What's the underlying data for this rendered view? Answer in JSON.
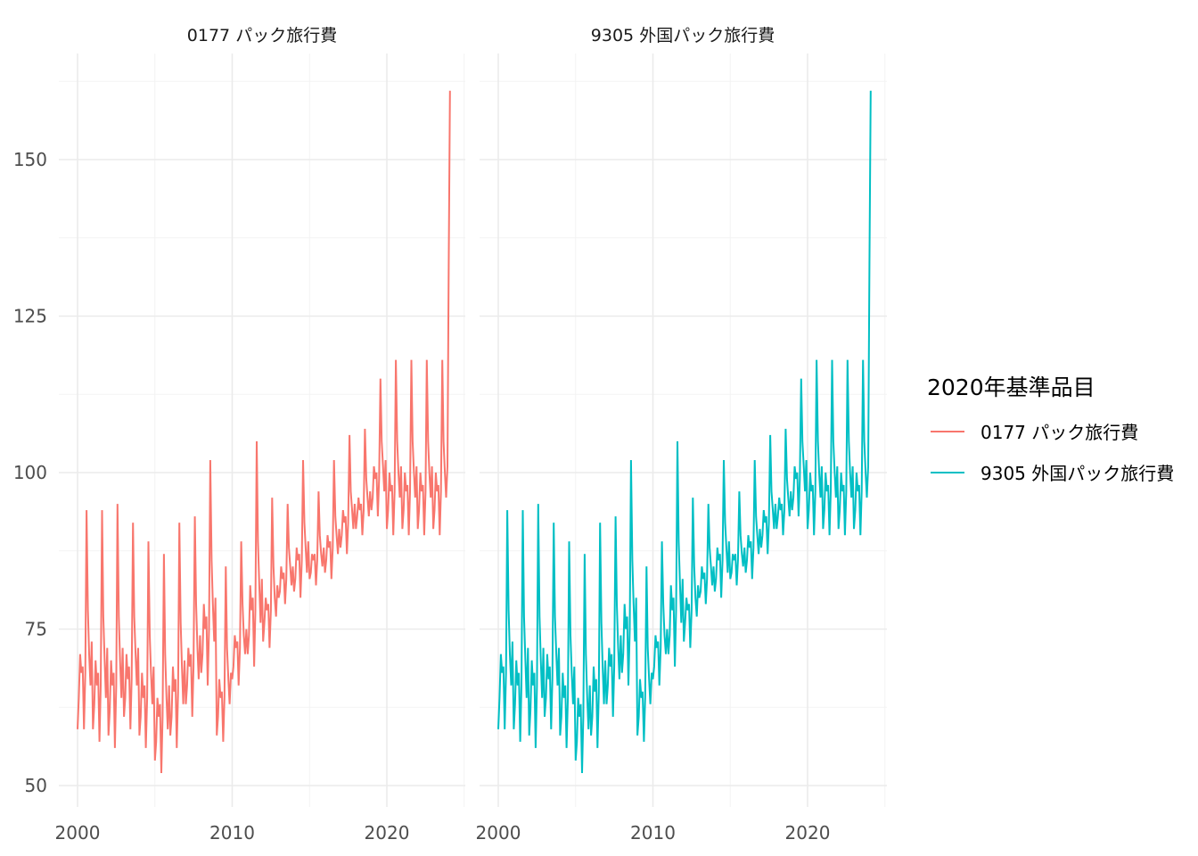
{
  "chart_data": {
    "type": "line",
    "facets": [
      "0177 パック旅行費",
      "9305 外国パック旅行費"
    ],
    "legend": {
      "title": "2020年基準品目",
      "position": "right",
      "entries": [
        {
          "name": "0177 パック旅行費",
          "color": "#F8766D"
        },
        {
          "name": "9305 外国パック旅行費",
          "color": "#00BFC4"
        }
      ]
    },
    "xlabel": "",
    "ylabel": "",
    "xlim": [
      1998.8,
      2025.2
    ],
    "ylim": [
      48,
      165
    ],
    "x_ticks": [
      2000,
      2010,
      2020
    ],
    "y_ticks": [
      50,
      75,
      100,
      125,
      150
    ],
    "grid": true,
    "start": "2000-01",
    "frequency": "monthly",
    "monthly_values_by_year": {
      "2000": [
        59,
        64,
        71,
        68,
        69,
        59,
        68,
        94,
        78,
        71,
        66,
        73
      ],
      "2001": [
        59,
        63,
        70,
        66,
        68,
        57,
        66,
        94,
        77,
        70,
        64,
        72
      ],
      "2002": [
        58,
        62,
        70,
        66,
        68,
        56,
        66,
        95,
        77,
        70,
        64,
        72
      ],
      "2003": [
        61,
        64,
        71,
        67,
        69,
        59,
        67,
        92,
        77,
        71,
        66,
        72
      ],
      "2004": [
        58,
        61,
        68,
        64,
        66,
        56,
        64,
        89,
        74,
        68,
        63,
        69
      ],
      "2005": [
        54,
        57,
        64,
        61,
        63,
        52,
        61,
        87,
        71,
        64,
        59,
        66
      ],
      "2006": [
        58,
        61,
        69,
        65,
        67,
        56,
        65,
        92,
        76,
        69,
        63,
        70
      ],
      "2007": [
        63,
        66,
        72,
        69,
        71,
        61,
        69,
        93,
        79,
        72,
        67,
        74
      ],
      "2008": [
        68,
        71,
        79,
        75,
        77,
        66,
        75,
        102,
        86,
        79,
        73,
        80
      ],
      "2009": [
        58,
        61,
        67,
        64,
        65,
        57,
        64,
        85,
        72,
        67,
        63,
        68
      ],
      "2010": [
        67,
        69,
        74,
        72,
        73,
        66,
        72,
        89,
        79,
        74,
        71,
        75
      ],
      "2011": [
        71,
        74,
        82,
        78,
        80,
        69,
        78,
        105,
        89,
        82,
        76,
        83
      ],
      "2012": [
        73,
        76,
        80,
        78,
        79,
        72,
        78,
        96,
        85,
        80,
        77,
        82
      ],
      "2013": [
        80,
        81,
        85,
        83,
        84,
        79,
        83,
        95,
        88,
        85,
        82,
        85
      ],
      "2014": [
        81,
        83,
        88,
        86,
        87,
        80,
        86,
        102,
        92,
        88,
        84,
        89
      ],
      "2015": [
        83,
        84,
        87,
        86,
        87,
        82,
        86,
        97,
        90,
        87,
        85,
        88
      ],
      "2016": [
        84,
        86,
        90,
        88,
        89,
        83,
        88,
        102,
        93,
        90,
        87,
        91
      ],
      "2017": [
        88,
        90,
        94,
        92,
        93,
        87,
        92,
        106,
        97,
        94,
        91,
        95
      ],
      "2018": [
        91,
        93,
        96,
        94,
        95,
        90,
        94,
        107,
        99,
        96,
        93,
        97
      ],
      "2019": [
        94,
        96,
        101,
        99,
        100,
        93,
        99,
        115,
        105,
        101,
        97,
        102
      ],
      "2020": [
        91,
        94,
        100,
        97,
        98,
        90,
        97,
        118,
        105,
        100,
        96,
        101
      ],
      "2021": [
        91,
        94,
        100,
        97,
        98,
        90,
        97,
        118,
        105,
        100,
        96,
        101
      ],
      "2022": [
        91,
        94,
        100,
        97,
        98,
        90,
        97,
        118,
        105,
        100,
        96,
        101
      ],
      "2023": [
        91,
        94,
        100,
        97,
        98,
        90,
        97,
        118,
        105,
        100,
        96,
        101
      ],
      "2024": [
        133,
        161
      ]
    }
  }
}
